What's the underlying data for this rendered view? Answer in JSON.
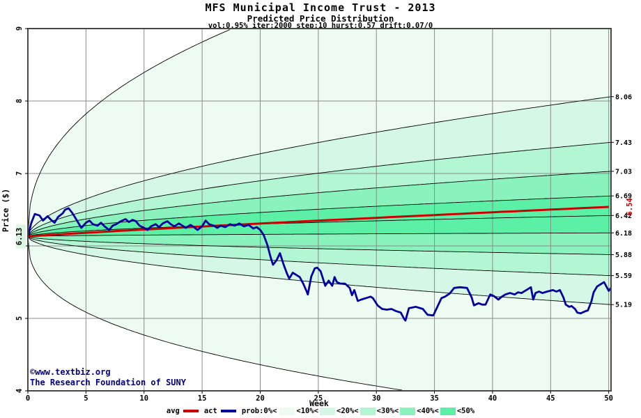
{
  "header": {
    "title": "MFS Municipal Income Trust - 2013",
    "subtitle": "Predicted Price Distribution",
    "params": "vol:0.95% iter:2000 step:10 hurst:0.57 drift:0.07/0"
  },
  "footer": {
    "copyright": "©www.textbiz.org",
    "organization": "The Research Foundation of SUNY"
  },
  "legend": {
    "avg_label": "avg",
    "act_label": "act",
    "prob_label": "prob:0%<",
    "avg_color": "#cc0000",
    "act_color": "#0000a0",
    "items": [
      {
        "label": "<10%<",
        "color": "#eefbf2"
      },
      {
        "label": "<20%<",
        "color": "#d5f8e6"
      },
      {
        "label": "<30%<",
        "color": "#b2f6d3"
      },
      {
        "label": "<40%<",
        "color": "#8af3bd"
      },
      {
        "label": "<50%",
        "color": "#5cf0a6"
      }
    ]
  },
  "chart_data": {
    "type": "area",
    "title": "MFS Municipal Income Trust - 2013",
    "subtitle": "Predicted Price Distribution",
    "xlabel": "Week",
    "ylabel": "Price ($)",
    "xlim": [
      0,
      50.2
    ],
    "ylim": [
      4,
      9
    ],
    "x_ticks": [
      0,
      5,
      10,
      15,
      20,
      25,
      30,
      35,
      40,
      45,
      50
    ],
    "y_ticks": [
      4,
      5,
      6,
      7,
      8,
      9
    ],
    "grid": true,
    "grid_color": "#8a8a8a",
    "start": {
      "week": 0,
      "price": 6.13,
      "label": "6.13",
      "highlight": "#d9f6e3"
    },
    "avg_line": {
      "name": "avg",
      "color": "#cc0000",
      "start": 6.13,
      "end": 6.54,
      "end_label": "6.54",
      "exponent": 0.9
    },
    "bands": {
      "description": "Monte-Carlo predicted price probability bands, symmetric shading about the median; boundary values are week-50 prices",
      "exponent": 0.57,
      "boundaries": [
        8.06,
        7.43,
        7.03,
        6.69,
        6.42,
        6.18,
        5.88,
        5.59,
        5.19
      ],
      "boundary_labels": [
        "8.06",
        "7.43",
        "7.03",
        "6.69",
        "6.42",
        "6.18",
        "5.88",
        "5.59",
        "5.19"
      ],
      "upper_extreme": {
        "exit_week": 17.6,
        "exit_price": 9,
        "exponent": 0.42
      },
      "lower_extreme": {
        "exit_week": 32.6,
        "exit_price": 4,
        "exponent": 0.38
      },
      "colors_out_to_in": [
        "#eefbf2",
        "#d5f8e6",
        "#b2f6d3",
        "#8af3bd",
        "#5cf0a6"
      ],
      "curve_color": "#000000"
    },
    "actual": {
      "name": "act",
      "color": "#0000a0",
      "points": [
        [
          0,
          6.13
        ],
        [
          0.3,
          6.32
        ],
        [
          0.6,
          6.44
        ],
        [
          1,
          6.42
        ],
        [
          1.3,
          6.35
        ],
        [
          1.7,
          6.41
        ],
        [
          2,
          6.36
        ],
        [
          2.3,
          6.32
        ],
        [
          2.6,
          6.4
        ],
        [
          3,
          6.45
        ],
        [
          3.2,
          6.5
        ],
        [
          3.5,
          6.52
        ],
        [
          3.8,
          6.46
        ],
        [
          4,
          6.41
        ],
        [
          4.3,
          6.33
        ],
        [
          4.6,
          6.25
        ],
        [
          5,
          6.32
        ],
        [
          5.3,
          6.35
        ],
        [
          5.6,
          6.3
        ],
        [
          6,
          6.28
        ],
        [
          6.3,
          6.32
        ],
        [
          6.6,
          6.27
        ],
        [
          7,
          6.22
        ],
        [
          7.3,
          6.28
        ],
        [
          7.6,
          6.3
        ],
        [
          8,
          6.34
        ],
        [
          8.4,
          6.37
        ],
        [
          8.7,
          6.33
        ],
        [
          9,
          6.36
        ],
        [
          9.3,
          6.34
        ],
        [
          9.6,
          6.28
        ],
        [
          10,
          6.25
        ],
        [
          10.3,
          6.22
        ],
        [
          10.6,
          6.27
        ],
        [
          11,
          6.3
        ],
        [
          11.3,
          6.26
        ],
        [
          11.6,
          6.31
        ],
        [
          12,
          6.34
        ],
        [
          12.3,
          6.3
        ],
        [
          12.6,
          6.27
        ],
        [
          13,
          6.31
        ],
        [
          13.3,
          6.28
        ],
        [
          13.6,
          6.25
        ],
        [
          14,
          6.29
        ],
        [
          14.3,
          6.26
        ],
        [
          14.6,
          6.22
        ],
        [
          15,
          6.27
        ],
        [
          15.3,
          6.35
        ],
        [
          15.6,
          6.3
        ],
        [
          16,
          6.28
        ],
        [
          16.3,
          6.25
        ],
        [
          16.6,
          6.28
        ],
        [
          17,
          6.26
        ],
        [
          17.4,
          6.3
        ],
        [
          17.8,
          6.28
        ],
        [
          18.2,
          6.31
        ],
        [
          18.6,
          6.27
        ],
        [
          19,
          6.29
        ],
        [
          19.4,
          6.24
        ],
        [
          19.7,
          6.26
        ],
        [
          20,
          6.22
        ],
        [
          20.3,
          6.15
        ],
        [
          20.6,
          6.02
        ],
        [
          20.9,
          5.84
        ],
        [
          21.1,
          5.74
        ],
        [
          21.4,
          5.8
        ],
        [
          21.7,
          5.9
        ],
        [
          22,
          5.75
        ],
        [
          22.3,
          5.62
        ],
        [
          22.5,
          5.55
        ],
        [
          22.8,
          5.63
        ],
        [
          23.1,
          5.6
        ],
        [
          23.4,
          5.57
        ],
        [
          23.7,
          5.48
        ],
        [
          24,
          5.37
        ],
        [
          24.1,
          5.33
        ],
        [
          24.4,
          5.58
        ],
        [
          24.7,
          5.69
        ],
        [
          24.9,
          5.7
        ],
        [
          25.2,
          5.65
        ],
        [
          25.6,
          5.45
        ],
        [
          25.9,
          5.52
        ],
        [
          26.2,
          5.45
        ],
        [
          26.4,
          5.57
        ],
        [
          26.6,
          5.5
        ],
        [
          26.9,
          5.48
        ],
        [
          27.3,
          5.48
        ],
        [
          27.7,
          5.42
        ],
        [
          27.9,
          5.32
        ],
        [
          28.1,
          5.39
        ],
        [
          28.4,
          5.24
        ],
        [
          28.7,
          5.26
        ],
        [
          29.1,
          5.28
        ],
        [
          29.5,
          5.3
        ],
        [
          29.7,
          5.28
        ],
        [
          30.1,
          5.18
        ],
        [
          30.5,
          5.13
        ],
        [
          30.9,
          5.12
        ],
        [
          31.3,
          5.13
        ],
        [
          31.7,
          5.1
        ],
        [
          32.1,
          5.08
        ],
        [
          32.4,
          4.99
        ],
        [
          32.5,
          4.97
        ],
        [
          32.8,
          5.14
        ],
        [
          33.4,
          5.16
        ],
        [
          34,
          5.13
        ],
        [
          34.4,
          5.05
        ],
        [
          34.9,
          5.04
        ],
        [
          35.6,
          5.28
        ],
        [
          35.9,
          5.3
        ],
        [
          36.3,
          5.34
        ],
        [
          36.7,
          5.42
        ],
        [
          37.2,
          5.43
        ],
        [
          37.8,
          5.42
        ],
        [
          38.2,
          5.29
        ],
        [
          38.4,
          5.18
        ],
        [
          38.8,
          5.21
        ],
        [
          39.1,
          5.19
        ],
        [
          39.4,
          5.19
        ],
        [
          39.8,
          5.33
        ],
        [
          40.1,
          5.31
        ],
        [
          40.5,
          5.26
        ],
        [
          40.8,
          5.3
        ],
        [
          41.1,
          5.33
        ],
        [
          41.5,
          5.35
        ],
        [
          41.9,
          5.33
        ],
        [
          42.2,
          5.36
        ],
        [
          42.5,
          5.35
        ],
        [
          42.9,
          5.39
        ],
        [
          43.2,
          5.42
        ],
        [
          43.3,
          5.43
        ],
        [
          43.5,
          5.26
        ],
        [
          43.7,
          5.35
        ],
        [
          44,
          5.37
        ],
        [
          44.3,
          5.35
        ],
        [
          44.7,
          5.37
        ],
        [
          45.2,
          5.39
        ],
        [
          45.5,
          5.37
        ],
        [
          45.8,
          5.39
        ],
        [
          46.1,
          5.29
        ],
        [
          46.3,
          5.19
        ],
        [
          46.6,
          5.16
        ],
        [
          46.8,
          5.17
        ],
        [
          47.1,
          5.13
        ],
        [
          47.3,
          5.08
        ],
        [
          47.6,
          5.07
        ],
        [
          48,
          5.1
        ],
        [
          48.2,
          5.11
        ],
        [
          48.5,
          5.23
        ],
        [
          48.7,
          5.36
        ],
        [
          49,
          5.44
        ],
        [
          49.3,
          5.47
        ],
        [
          49.6,
          5.5
        ],
        [
          50,
          5.38
        ],
        [
          50.2,
          5.42
        ]
      ]
    }
  }
}
